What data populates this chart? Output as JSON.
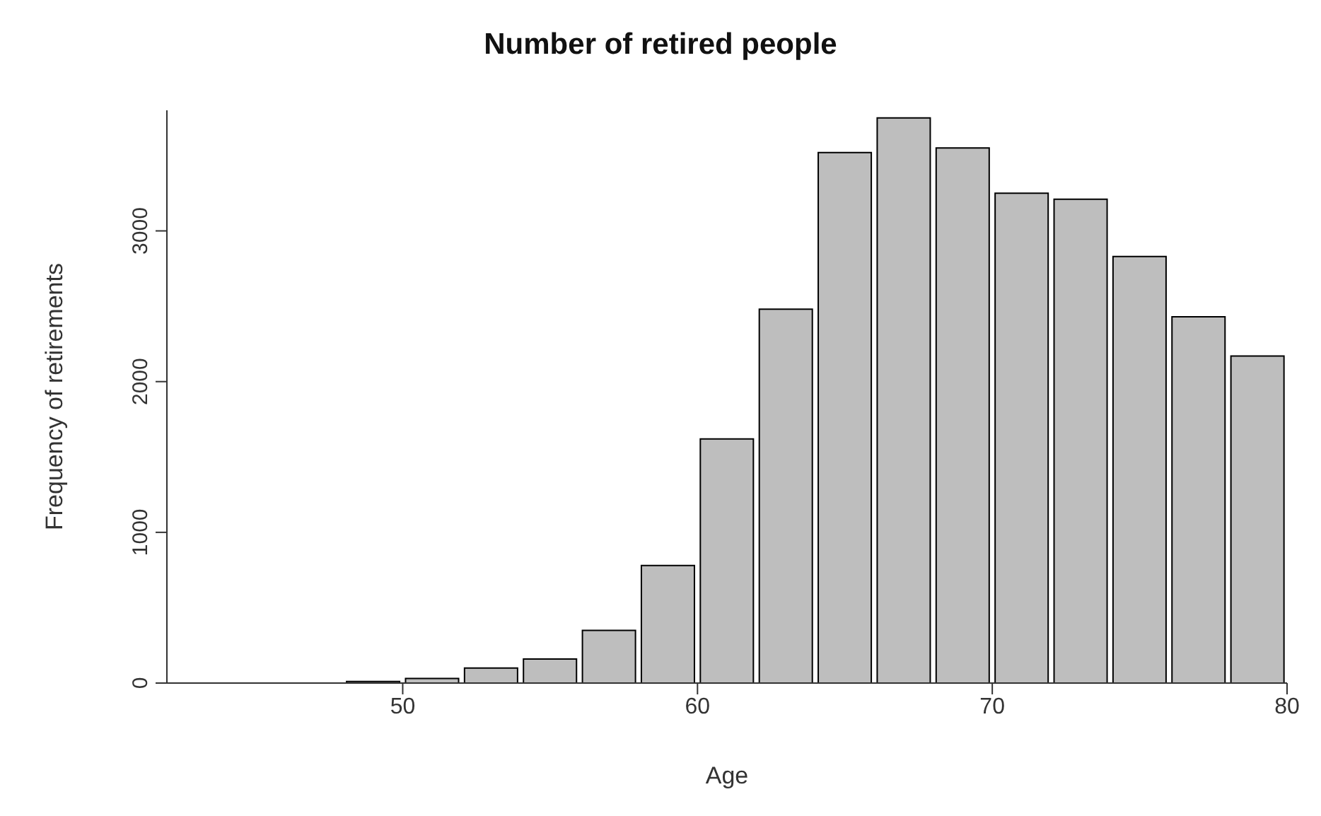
{
  "chart_data": {
    "type": "histogram",
    "title": "Number of retired people",
    "xlabel": "Age",
    "ylabel": "Frequency of retirements",
    "bins": [
      42,
      44,
      46,
      48,
      50,
      52,
      54,
      56,
      58,
      60,
      62,
      64,
      66,
      68,
      70,
      72,
      74,
      76,
      78,
      80
    ],
    "values": [
      0,
      0,
      0,
      10,
      30,
      100,
      160,
      350,
      780,
      1620,
      2480,
      3520,
      3750,
      3550,
      3250,
      3210,
      2830,
      2430,
      2170
    ],
    "color": "#bebebe",
    "xlim": [
      42,
      80
    ],
    "xticks": [
      50,
      60,
      70,
      80
    ],
    "ylim": [
      0,
      3800
    ],
    "yticks": [
      0,
      1000,
      2000,
      3000
    ],
    "grid": false
  }
}
